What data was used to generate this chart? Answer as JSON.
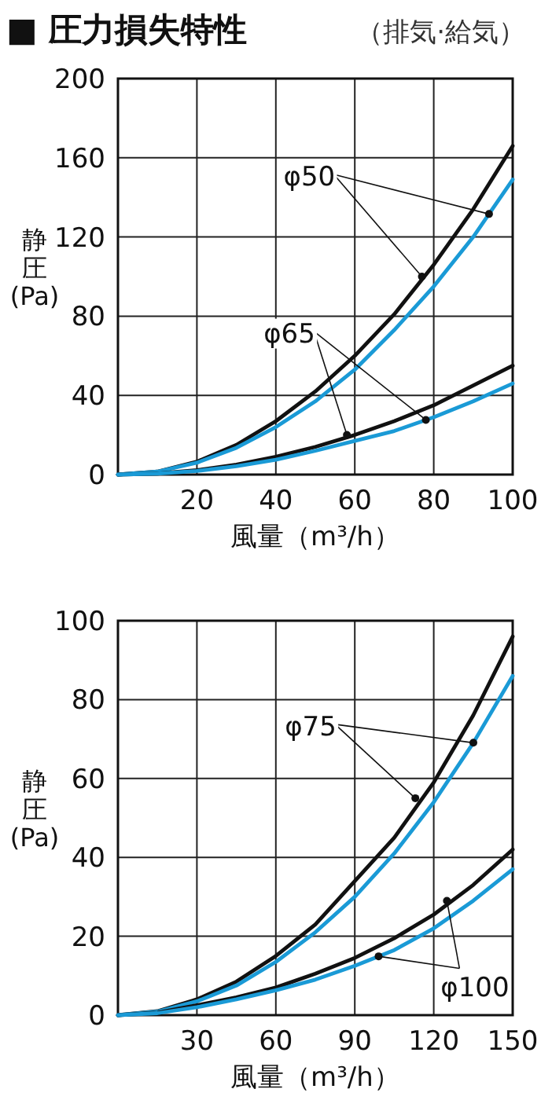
{
  "chart_data": [
    {
      "type": "line",
      "title": "■ 圧力損失特性",
      "subtitle": "（排気·給気）",
      "xlabel": "風量（m³/h）",
      "ylabel": "静圧\n(Pa)",
      "x": [
        0,
        10,
        20,
        30,
        40,
        50,
        60,
        70,
        80,
        90,
        100
      ],
      "series": [
        {
          "color": "#111111",
          "values": [
            0,
            1.5,
            6.5,
            15,
            27,
            42,
            60,
            81,
            106,
            134,
            166
          ]
        },
        {
          "color": "#1a9ad6",
          "values": [
            0,
            1.5,
            6,
            13.5,
            24,
            37,
            53,
            73,
            95,
            120,
            149
          ]
        },
        {
          "color": "#111111",
          "values": [
            0,
            0.5,
            2.2,
            5,
            9,
            14,
            20,
            27,
            35,
            45,
            55
          ]
        },
        {
          "color": "#1a9ad6",
          "values": [
            0,
            0.5,
            1.8,
            4.2,
            7.5,
            12,
            17,
            22,
            29,
            37,
            46
          ]
        }
      ],
      "xlim": [
        0,
        100
      ],
      "ylim": [
        0,
        200
      ],
      "xticks": [
        {
          "value": 0,
          "label": null
        },
        20,
        40,
        60,
        80,
        100
      ],
      "yticks": [
        0,
        40,
        80,
        120,
        160,
        200
      ],
      "grid": true,
      "marker": "none",
      "line_style": "solid",
      "annotations": [
        {
          "text": "φ50",
          "x": 77,
          "y": 100
        },
        {
          "text": "φ65",
          "x": 58,
          "y": 20
        }
      ]
    },
    {
      "type": "line",
      "xlabel": "風量（m³/h）",
      "ylabel": "静圧\n(Pa)",
      "x": [
        0,
        15,
        30,
        45,
        60,
        75,
        90,
        105,
        120,
        135,
        150
      ],
      "series": [
        {
          "color": "#111111",
          "values": [
            0,
            1,
            4,
            8.5,
            15,
            23,
            34,
            45,
            59,
            76,
            96
          ]
        },
        {
          "color": "#1a9ad6",
          "values": [
            0,
            0.9,
            3.5,
            7.5,
            13.5,
            21,
            30,
            41,
            54,
            69,
            86
          ]
        },
        {
          "color": "#111111",
          "values": [
            0,
            0.6,
            2.5,
            4.5,
            7,
            10.5,
            14.5,
            19.5,
            25.5,
            33,
            42
          ]
        },
        {
          "color": "#1a9ad6",
          "values": [
            0,
            0.5,
            2,
            4,
            6.3,
            9,
            12.5,
            16.5,
            22,
            29,
            37
          ]
        }
      ],
      "xlim": [
        0,
        150
      ],
      "ylim": [
        0,
        100
      ],
      "xticks": [
        {
          "value": 0,
          "label": null
        },
        30,
        60,
        90,
        120,
        150
      ],
      "yticks": [
        0,
        20,
        40,
        60,
        80,
        100
      ],
      "grid": true,
      "marker": "none",
      "line_style": "solid",
      "annotations": [
        {
          "text": "φ75",
          "x": 113,
          "y": 55
        },
        {
          "text": "φ100",
          "x": 125,
          "y": 29
        }
      ]
    }
  ]
}
